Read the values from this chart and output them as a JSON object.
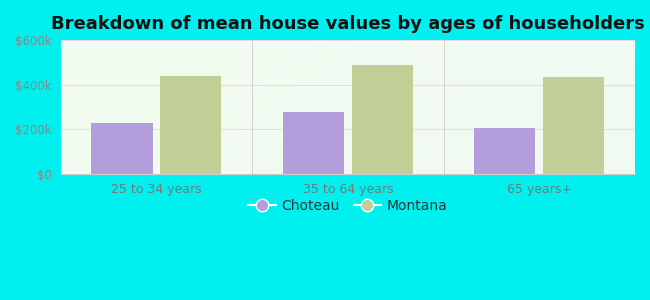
{
  "title": "Breakdown of mean house values by ages of householders",
  "categories": [
    "25 to 34 years",
    "35 to 64 years",
    "65 years+"
  ],
  "choteau_values": [
    230000,
    280000,
    205000
  ],
  "montana_values": [
    440000,
    490000,
    435000
  ],
  "choteau_color": "#b39ddb",
  "montana_color": "#bfcf96",
  "ylim": [
    0,
    600000
  ],
  "yticks": [
    0,
    200000,
    400000,
    600000
  ],
  "ytick_labels": [
    "$0",
    "$200k",
    "$400k",
    "$600k"
  ],
  "background_color": "#00f0f0",
  "legend_labels": [
    "Choteau",
    "Montana"
  ],
  "title_fontsize": 13,
  "bar_width": 0.32,
  "figsize": [
    6.5,
    3.0
  ],
  "dpi": 100
}
